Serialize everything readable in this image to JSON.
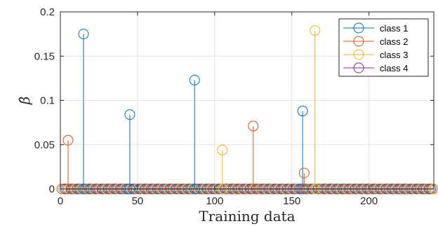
{
  "chart_data": {
    "type": "stem",
    "xlabel": "Training data",
    "ylabel": "β̂",
    "xlim": [
      0,
      242
    ],
    "ylim": [
      0,
      0.2
    ],
    "xticks": [
      0,
      50,
      100,
      150,
      200
    ],
    "yticks": [
      0,
      0.05,
      0.1,
      0.15,
      0.2
    ],
    "ytick_labels": [
      "0",
      "0.05",
      "0.1",
      "0.15",
      "0.2"
    ],
    "grid": true,
    "legend_position": "top-right",
    "n_points": 242,
    "series": [
      {
        "name": "class 1",
        "color": "#0072BD",
        "offset": 1,
        "nonzero": [
          [
            15,
            0.175
          ],
          [
            45,
            0.084
          ],
          [
            87,
            0.123
          ],
          [
            157,
            0.088
          ]
        ]
      },
      {
        "name": "class 2",
        "color": "#D95319",
        "offset": 2,
        "nonzero": [
          [
            5,
            0.055
          ],
          [
            125,
            0.071
          ],
          [
            158,
            0.018
          ]
        ]
      },
      {
        "name": "class 3",
        "color": "#EDB120",
        "offset": 3,
        "nonzero": [
          [
            105,
            0.044
          ],
          [
            165,
            0.179
          ]
        ]
      },
      {
        "name": "class 4",
        "color": "#7E2F8E",
        "offset": 0,
        "nonzero": []
      }
    ]
  }
}
